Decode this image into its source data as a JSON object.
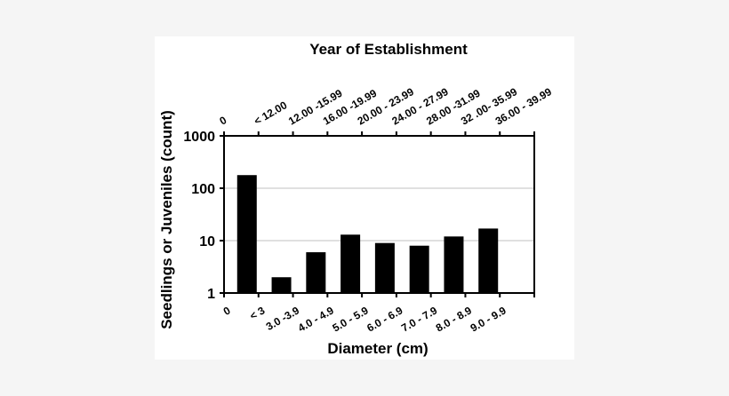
{
  "chart_data": {
    "type": "bar",
    "title": "Year of Establishment",
    "xlabel": "Diameter (cm)",
    "ylabel": "Seedlings or Juveniles (count)",
    "yscale": "log",
    "ylim": [
      1,
      1000
    ],
    "yticks": [
      "1",
      "10",
      "100",
      "1000"
    ],
    "grid": true,
    "x_origin_label": "0",
    "categories": [
      "< 3",
      "3.0 -3.9",
      "4.0 - 4.9",
      "5.0 - 5.9",
      "6.0 - 6.9",
      "7.0 - 7.9",
      "8.0 - 8.9",
      "9.0 - 9.9"
    ],
    "values": [
      178,
      2,
      6,
      13,
      9,
      8,
      12,
      17
    ],
    "top_axis": {
      "label": "Year of Establishment",
      "origin_label": "0",
      "categories": [
        "< 12.00",
        "12.00 -15.99",
        "16.00 -19.99",
        "20.00 - 23.99",
        "24.00 - 27.99",
        "28.00 -31.99",
        "32 .00- 35.99",
        "36.00 - 39.99"
      ]
    },
    "bar_color": "#000000",
    "gridline_color": "#c0c0c0"
  }
}
